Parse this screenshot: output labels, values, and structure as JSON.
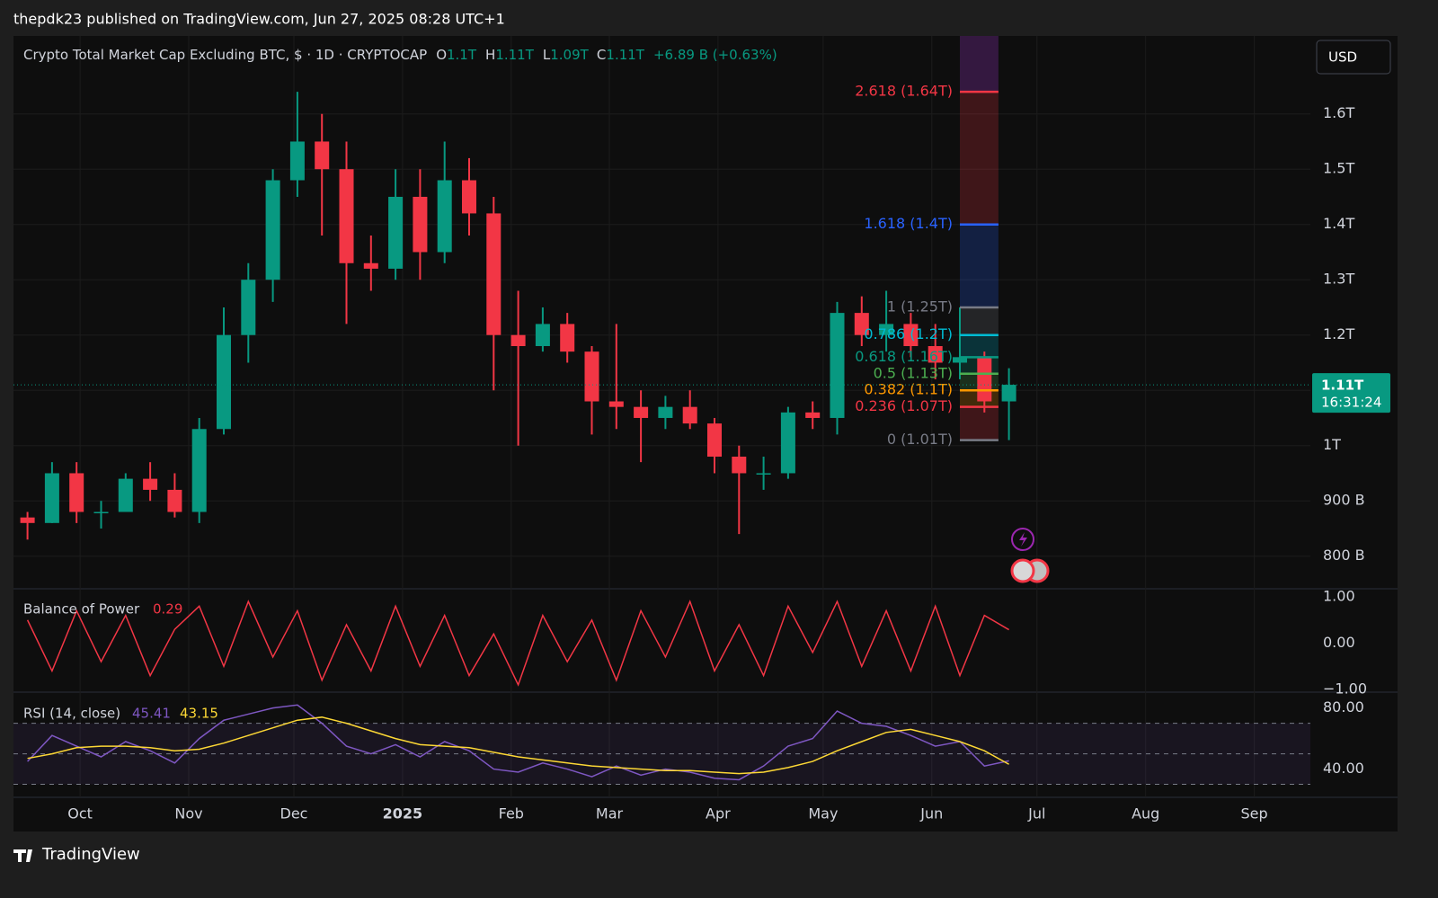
{
  "header": {
    "publisher": "thepdk23 published on TradingView.com, Jun 27, 2025 08:28 UTC+1",
    "logo": "TradingView",
    "currency": "USD"
  },
  "chart_data": [
    {
      "type": "candlestick",
      "title": "Crypto Total Market Cap Excluding BTC, $ · 1D · CRYPTOCAP",
      "quote_keys": [
        "O",
        "H",
        "L",
        "C"
      ],
      "quote_values": [
        "1.1T",
        "1.11T",
        "1.09T",
        "1.11T"
      ],
      "change": "+6.89 B (+0.63%)",
      "x": [
        "2024-09-16",
        "2024-09-23",
        "2024-09-30",
        "2024-10-07",
        "2024-10-14",
        "2024-10-21",
        "2024-10-28",
        "2024-11-04",
        "2024-11-11",
        "2024-11-18",
        "2024-11-25",
        "2024-12-02",
        "2024-12-09",
        "2024-12-16",
        "2024-12-23",
        "2024-12-30",
        "2025-01-06",
        "2025-01-13",
        "2025-01-20",
        "2025-01-27",
        "2025-02-03",
        "2025-02-10",
        "2025-02-17",
        "2025-02-24",
        "2025-03-03",
        "2025-03-10",
        "2025-03-17",
        "2025-03-24",
        "2025-03-31",
        "2025-04-07",
        "2025-04-14",
        "2025-04-21",
        "2025-04-28",
        "2025-05-05",
        "2025-05-12",
        "2025-05-19",
        "2025-05-26",
        "2025-06-02",
        "2025-06-09",
        "2025-06-16",
        "2025-06-23"
      ],
      "open": [
        0.87,
        0.86,
        0.95,
        0.88,
        0.88,
        0.94,
        0.92,
        0.88,
        1.03,
        1.2,
        1.3,
        1.48,
        1.55,
        1.5,
        1.33,
        1.32,
        1.45,
        1.35,
        1.48,
        1.42,
        1.2,
        1.18,
        1.22,
        1.17,
        1.08,
        1.07,
        1.05,
        1.07,
        1.04,
        0.98,
        0.95,
        0.95,
        1.06,
        1.05,
        1.24,
        1.2,
        1.22,
        1.18,
        1.15,
        1.16,
        1.08
      ],
      "high": [
        0.88,
        0.97,
        0.97,
        0.9,
        0.95,
        0.97,
        0.95,
        1.05,
        1.25,
        1.33,
        1.5,
        1.64,
        1.6,
        1.55,
        1.38,
        1.5,
        1.5,
        1.55,
        1.52,
        1.45,
        1.28,
        1.25,
        1.24,
        1.18,
        1.22,
        1.1,
        1.09,
        1.1,
        1.05,
        1.0,
        0.98,
        1.07,
        1.08,
        1.26,
        1.27,
        1.28,
        1.24,
        1.22,
        1.25,
        1.17,
        1.14
      ],
      "low": [
        0.83,
        0.86,
        0.86,
        0.85,
        0.88,
        0.9,
        0.87,
        0.86,
        1.02,
        1.15,
        1.26,
        1.45,
        1.38,
        1.22,
        1.28,
        1.3,
        1.3,
        1.33,
        1.38,
        1.1,
        1.0,
        1.17,
        1.15,
        1.02,
        1.03,
        0.97,
        1.03,
        1.03,
        0.95,
        0.84,
        0.92,
        0.94,
        1.03,
        1.02,
        1.18,
        1.17,
        1.16,
        1.12,
        1.12,
        1.06,
        1.01
      ],
      "close": [
        0.86,
        0.95,
        0.88,
        0.88,
        0.94,
        0.92,
        0.88,
        1.03,
        1.2,
        1.3,
        1.48,
        1.55,
        1.5,
        1.33,
        1.32,
        1.45,
        1.35,
        1.48,
        1.42,
        1.2,
        1.18,
        1.22,
        1.17,
        1.08,
        1.07,
        1.05,
        1.07,
        1.04,
        0.98,
        0.95,
        0.95,
        1.06,
        1.05,
        1.24,
        1.2,
        1.22,
        1.18,
        1.15,
        1.16,
        1.08,
        1.11
      ],
      "colors": {
        "up": "#089981",
        "down": "#f23645"
      },
      "xlim": [
        "2024-09-12",
        "2025-09-17"
      ],
      "xticks": [
        {
          "value": "2024-10-01",
          "label": "Oct"
        },
        {
          "value": "2024-11-01",
          "label": "Nov"
        },
        {
          "value": "2024-12-01",
          "label": "Dec"
        },
        {
          "value": "2025-01-01",
          "label": "2025"
        },
        {
          "value": "2025-02-01",
          "label": "Feb"
        },
        {
          "value": "2025-03-01",
          "label": "Mar"
        },
        {
          "value": "2025-04-01",
          "label": "Apr"
        },
        {
          "value": "2025-05-01",
          "label": "May"
        },
        {
          "value": "2025-06-01",
          "label": "Jun"
        },
        {
          "value": "2025-07-01",
          "label": "Jul"
        },
        {
          "value": "2025-08-01",
          "label": "Aug"
        },
        {
          "value": "2025-09-01",
          "label": "Sep"
        }
      ],
      "ylim": [
        0.741,
        1.741
      ],
      "yticks": [
        {
          "value": 0.8,
          "label": "800 B"
        },
        {
          "value": 0.9,
          "label": "900 B"
        },
        {
          "value": 1,
          "label": "1T"
        },
        {
          "value": 1.1,
          "label": "1.1T"
        },
        {
          "value": 1.2,
          "label": "1.2T"
        },
        {
          "value": 1.3,
          "label": "1.3T"
        },
        {
          "value": 1.4,
          "label": "1.4T"
        },
        {
          "value": 1.5,
          "label": "1.5T"
        },
        {
          "value": 1.6,
          "label": "1.6T"
        }
      ],
      "last_price": {
        "value": 1.11,
        "label": "1.11T",
        "countdown": "16:31:24",
        "color": "#089981"
      },
      "fib": {
        "xrange": [
          "2025-06-09",
          "2025-06-20"
        ],
        "top_color": "#7b2a9e",
        "levels": [
          {
            "label": "2.618 (1.64T)",
            "price": 1.64,
            "color": "#f23645"
          },
          {
            "label": "1.618 (1.4T)",
            "price": 1.4,
            "color": "#2962ff"
          },
          {
            "label": "1 (1.25T)",
            "price": 1.25,
            "color": "#787b86"
          },
          {
            "label": "0.786 (1.2T)",
            "price": 1.2,
            "color": "#00bcd4"
          },
          {
            "label": "0.618 (1.16T)",
            "price": 1.16,
            "color": "#089981"
          },
          {
            "label": "0.5 (1.13T)",
            "price": 1.13,
            "color": "#4caf50"
          },
          {
            "label": "0.382 (1.1T)",
            "price": 1.1,
            "color": "#ff9800"
          },
          {
            "label": "0.236 (1.07T)",
            "price": 1.07,
            "color": "#f23645"
          },
          {
            "label": "0 (1.01T)",
            "price": 1.01,
            "color": "#787b86"
          }
        ]
      }
    },
    {
      "type": "line",
      "title": "Balance of Power",
      "last_value": "0.29",
      "color": "#f23645",
      "values": [
        0.5,
        -0.6,
        0.7,
        -0.4,
        0.6,
        -0.7,
        0.3,
        0.8,
        -0.5,
        0.9,
        -0.3,
        0.7,
        -0.8,
        0.4,
        -0.6,
        0.8,
        -0.5,
        0.6,
        -0.7,
        0.2,
        -0.9,
        0.6,
        -0.4,
        0.5,
        -0.8,
        0.7,
        -0.3,
        0.9,
        -0.6,
        0.4,
        -0.7,
        0.8,
        -0.2,
        0.9,
        -0.5,
        0.7,
        -0.6,
        0.8,
        -0.7,
        0.6,
        0.29
      ],
      "ylim": [
        -1.058,
        1.136
      ],
      "yticks": [
        {
          "value": -1,
          "label": "−1.00"
        },
        {
          "value": 0,
          "label": "0.00"
        },
        {
          "value": 1,
          "label": "1.00"
        }
      ]
    },
    {
      "type": "line",
      "title": "RSI (14, close)",
      "series": [
        {
          "name": "45.41",
          "color": "#7e57c2",
          "values": [
            45,
            62,
            55,
            48,
            58,
            52,
            44,
            60,
            72,
            76,
            80,
            82,
            70,
            55,
            50,
            56,
            48,
            58,
            52,
            40,
            38,
            44,
            40,
            35,
            42,
            36,
            40,
            38,
            34,
            33,
            42,
            55,
            60,
            78,
            70,
            68,
            62,
            55,
            58,
            42,
            45.41
          ]
        },
        {
          "name": "43.15",
          "color": "#fdd835",
          "values": [
            47,
            50,
            54,
            55,
            55,
            54,
            52,
            53,
            57,
            62,
            67,
            72,
            74,
            70,
            65,
            60,
            56,
            55,
            54,
            51,
            48,
            46,
            44,
            42,
            41,
            40,
            39,
            39,
            38,
            37,
            38,
            41,
            45,
            52,
            58,
            64,
            66,
            62,
            58,
            52,
            43.15
          ]
        }
      ],
      "levels": [
        30,
        50,
        70
      ],
      "ylim": [
        21.5,
        89.2
      ],
      "yticks": [
        {
          "value": 40,
          "label": "40.00"
        },
        {
          "value": 80,
          "label": "80.00"
        }
      ]
    }
  ]
}
